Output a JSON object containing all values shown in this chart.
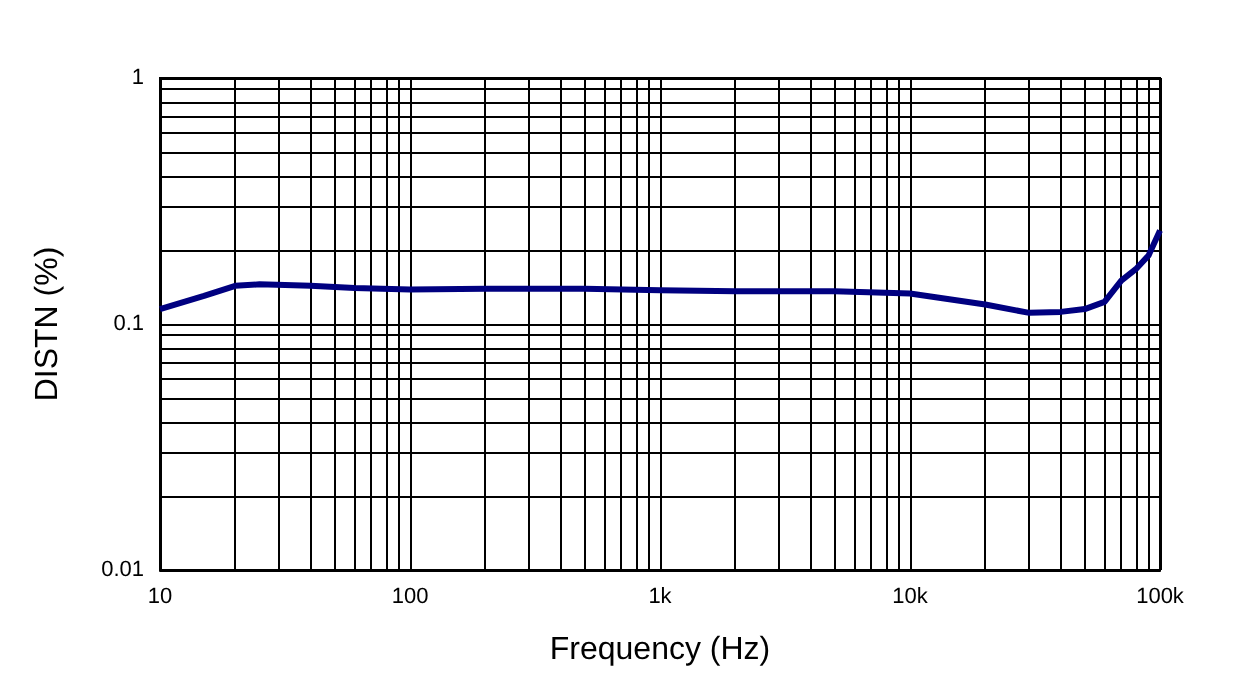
{
  "chart_data": {
    "type": "line",
    "xlabel": "Frequency (Hz)",
    "ylabel": "DISTN (%)",
    "log": "xy",
    "grid": true,
    "marker": "none",
    "line_style": "solid",
    "xlim": [
      10,
      100000
    ],
    "ylim": [
      0.01,
      1
    ],
    "xticks": [
      10,
      {
        "value": 20,
        "label": null
      },
      {
        "value": 30,
        "label": null
      },
      {
        "value": 40,
        "label": null
      },
      {
        "value": 50,
        "label": null
      },
      {
        "value": 60,
        "label": null
      },
      {
        "value": 70,
        "label": null
      },
      {
        "value": 80,
        "label": null
      },
      {
        "value": 90,
        "label": null
      },
      100,
      {
        "value": 200,
        "label": null
      },
      {
        "value": 300,
        "label": null
      },
      {
        "value": 400,
        "label": null
      },
      {
        "value": 500,
        "label": null
      },
      {
        "value": 600,
        "label": null
      },
      {
        "value": 700,
        "label": null
      },
      {
        "value": 800,
        "label": null
      },
      {
        "value": 900,
        "label": null
      },
      {
        "value": 1000,
        "label": "1k"
      },
      {
        "value": 2000,
        "label": null
      },
      {
        "value": 3000,
        "label": null
      },
      {
        "value": 4000,
        "label": null
      },
      {
        "value": 5000,
        "label": null
      },
      {
        "value": 6000,
        "label": null
      },
      {
        "value": 7000,
        "label": null
      },
      {
        "value": 8000,
        "label": null
      },
      {
        "value": 9000,
        "label": null
      },
      {
        "value": 10000,
        "label": "10k"
      },
      {
        "value": 20000,
        "label": null
      },
      {
        "value": 30000,
        "label": null
      },
      {
        "value": 40000,
        "label": null
      },
      {
        "value": 50000,
        "label": null
      },
      {
        "value": 60000,
        "label": null
      },
      {
        "value": 70000,
        "label": null
      },
      {
        "value": 80000,
        "label": null
      },
      {
        "value": 90000,
        "label": null
      },
      {
        "value": 100000,
        "label": "100k"
      }
    ],
    "yticks": [
      0.01,
      {
        "value": 0.02,
        "label": null
      },
      {
        "value": 0.03,
        "label": null
      },
      {
        "value": 0.04,
        "label": null
      },
      {
        "value": 0.05,
        "label": null
      },
      {
        "value": 0.06,
        "label": null
      },
      {
        "value": 0.07,
        "label": null
      },
      {
        "value": 0.08,
        "label": null
      },
      {
        "value": 0.09,
        "label": null
      },
      0.1,
      {
        "value": 0.2,
        "label": null
      },
      {
        "value": 0.3,
        "label": null
      },
      {
        "value": 0.4,
        "label": null
      },
      {
        "value": 0.5,
        "label": null
      },
      {
        "value": 0.6,
        "label": null
      },
      {
        "value": 0.7,
        "label": null
      },
      {
        "value": 0.8,
        "label": null
      },
      {
        "value": 0.9,
        "label": null
      },
      1
    ],
    "series": [
      {
        "color": "#000080",
        "x": [
          10,
          15,
          20,
          25,
          40,
          60,
          100,
          200,
          500,
          1000,
          2000,
          5000,
          10000,
          20000,
          30000,
          40000,
          50000,
          60000,
          70000,
          80000,
          90000,
          100000
        ],
        "values": [
          0.115,
          0.13,
          0.143,
          0.145,
          0.143,
          0.14,
          0.138,
          0.139,
          0.139,
          0.137,
          0.136,
          0.136,
          0.133,
          0.12,
          0.111,
          0.112,
          0.115,
          0.123,
          0.15,
          0.167,
          0.19,
          0.24
        ]
      }
    ]
  }
}
